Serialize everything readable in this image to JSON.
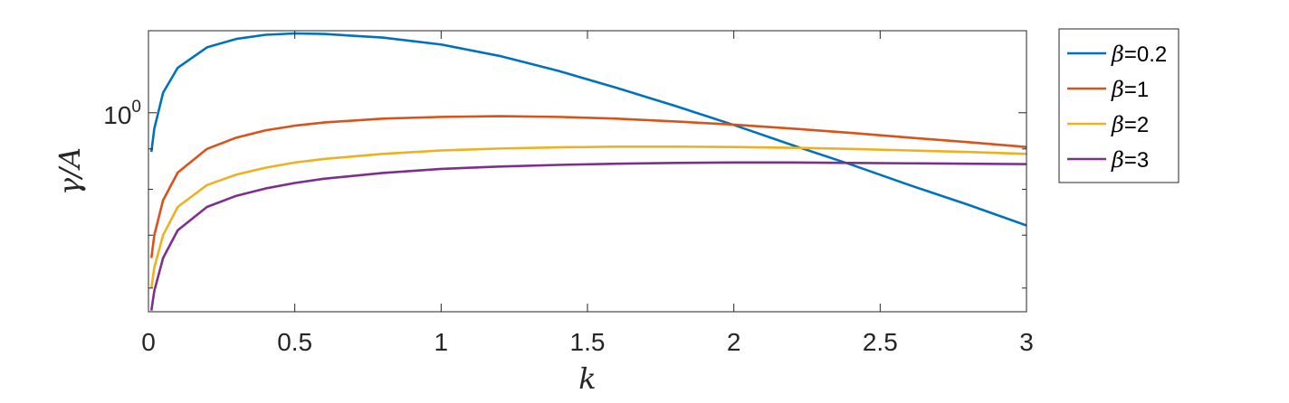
{
  "chart_data": {
    "type": "line",
    "title": "",
    "xlabel": "k",
    "ylabel": "γ/A",
    "xlim": [
      0,
      3
    ],
    "ylim": [
      0.56,
      1.27
    ],
    "yscale": "log",
    "x_ticks": [
      "0",
      "0.5",
      "1",
      "1.5",
      "2",
      "2.5",
      "3"
    ],
    "y_tick_label": {
      "base": "10",
      "exp": "0"
    },
    "grid": false,
    "legend_position": "outside-right",
    "series": [
      {
        "name": "β=0.2",
        "label_prefix": "β",
        "label_value": "=0.2",
        "color": "#0072BD",
        "x": [
          0.01,
          0.02,
          0.05,
          0.1,
          0.2,
          0.3,
          0.4,
          0.5,
          0.6,
          0.8,
          1.0,
          1.2,
          1.4,
          1.6,
          1.8,
          2.0,
          2.2,
          2.4,
          2.6,
          2.8,
          3.0
        ],
        "y": [
          0.892,
          0.955,
          1.06,
          1.14,
          1.21,
          1.24,
          1.255,
          1.26,
          1.258,
          1.245,
          1.22,
          1.18,
          1.13,
          1.075,
          1.02,
          0.965,
          0.91,
          0.86,
          0.81,
          0.765,
          0.72
        ]
      },
      {
        "name": "β=1",
        "label_prefix": "β",
        "label_value": "=1",
        "color": "#D95319",
        "x": [
          0.01,
          0.02,
          0.05,
          0.1,
          0.2,
          0.3,
          0.4,
          0.5,
          0.6,
          0.8,
          1.0,
          1.2,
          1.4,
          1.6,
          1.8,
          2.0,
          2.2,
          2.4,
          2.6,
          2.8,
          3.0
        ],
        "y": [
          0.655,
          0.7,
          0.775,
          0.84,
          0.9,
          0.93,
          0.95,
          0.963,
          0.972,
          0.983,
          0.988,
          0.99,
          0.988,
          0.983,
          0.975,
          0.966,
          0.955,
          0.943,
          0.93,
          0.918,
          0.905
        ]
      },
      {
        "name": "β=2",
        "label_prefix": "β",
        "label_value": "=2",
        "color": "#EDB120",
        "x": [
          0.01,
          0.02,
          0.05,
          0.1,
          0.2,
          0.3,
          0.4,
          0.5,
          0.6,
          0.8,
          1.0,
          1.2,
          1.4,
          1.6,
          1.8,
          2.0,
          2.2,
          2.4,
          2.6,
          2.8,
          3.0
        ],
        "y": [
          0.6,
          0.637,
          0.7,
          0.76,
          0.81,
          0.835,
          0.852,
          0.865,
          0.874,
          0.887,
          0.896,
          0.901,
          0.904,
          0.906,
          0.906,
          0.905,
          0.903,
          0.9,
          0.896,
          0.892,
          0.887
        ]
      },
      {
        "name": "β=3",
        "label_prefix": "β",
        "label_value": "=3",
        "color": "#7E2F8E",
        "x": [
          0.01,
          0.02,
          0.05,
          0.1,
          0.2,
          0.3,
          0.4,
          0.5,
          0.6,
          0.8,
          1.0,
          1.2,
          1.4,
          1.6,
          1.8,
          2.0,
          2.2,
          2.4,
          2.6,
          2.8,
          3.0
        ],
        "y": [
          0.562,
          0.595,
          0.655,
          0.71,
          0.76,
          0.785,
          0.802,
          0.815,
          0.825,
          0.839,
          0.849,
          0.855,
          0.859,
          0.862,
          0.864,
          0.865,
          0.865,
          0.864,
          0.863,
          0.862,
          0.861
        ]
      }
    ]
  }
}
